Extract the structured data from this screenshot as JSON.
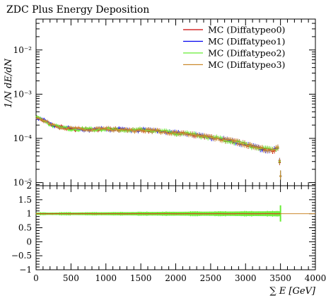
{
  "chart_data": {
    "type": "scatter",
    "title": "ZDC Plus Energy Deposition",
    "xlabel": "∑ E [GeV]",
    "ylabel": "1/N dE/dN",
    "xlim": [
      0,
      4000
    ],
    "grid": false,
    "legend_placement": "top-right",
    "x_ticks": [
      "0",
      "500",
      "1000",
      "1500",
      "2000",
      "2500",
      "3000",
      "3500",
      "4000"
    ],
    "x_tick_values": [
      0,
      500,
      1000,
      1500,
      2000,
      2500,
      3000,
      3500,
      4000
    ],
    "main_panel": {
      "yscale": "log",
      "ylim": [
        8.5e-06,
        0.05
      ],
      "y_ticks": [
        "10⁻⁵",
        "10⁻⁴",
        "10⁻³",
        "10⁻²"
      ],
      "y_tick_values": [
        1e-05,
        0.0001,
        0.001,
        0.01
      ],
      "bin_width": 25,
      "reference_x": [
        0,
        100,
        200,
        300,
        400,
        500,
        600,
        700,
        800,
        900,
        1000,
        1100,
        1200,
        1300,
        1400,
        1500,
        1600,
        1700,
        1800,
        1900,
        2000,
        2100,
        2200,
        2300,
        2400,
        2500,
        2600,
        2700,
        2800,
        2900,
        3000,
        3100,
        3200,
        3300,
        3400,
        3450,
        3475,
        3500,
        3525
      ],
      "reference_y": [
        0.00031,
        0.00026,
        0.00021,
        0.000185,
        0.000175,
        0.000165,
        0.000162,
        0.00016,
        0.00016,
        0.000162,
        0.000163,
        0.00016,
        0.000158,
        0.000155,
        0.000152,
        0.000155,
        0.000153,
        0.000148,
        0.000143,
        0.000138,
        0.000132,
        0.000128,
        0.000125,
        0.000118,
        0.000112,
        0.000106,
        0.0001,
        9.3e-05,
        8.7e-05,
        8e-05,
        7.3e-05,
        6.6e-05,
        6e-05,
        5.6e-05,
        5.5e-05,
        6e-05,
        6.4e-05,
        1.4e-05,
        0.0
      ]
    },
    "ratio_panel": {
      "ylim": [
        -1,
        2
      ],
      "y_ticks": [
        "−1",
        "−0.5",
        "0",
        "0.5",
        "1",
        "1.5",
        "2"
      ],
      "y_tick_values": [
        -1,
        -0.5,
        0,
        0.5,
        1,
        1.5,
        2
      ],
      "reference_value": 1.0,
      "band_halfwidth_start": 0.04,
      "band_halfwidth_end": 0.09,
      "band_x_end": 3500
    },
    "series": [
      {
        "name": "MC (Diffatypeo0)",
        "color": "#cc0000"
      },
      {
        "name": "MC (Diffatypeo1)",
        "color": "#0000ee"
      },
      {
        "name": "MC (Diffatypeo2)",
        "color": "#66ee33"
      },
      {
        "name": "MC (Diffatypeo3)",
        "color": "#cc8a2e"
      }
    ]
  }
}
